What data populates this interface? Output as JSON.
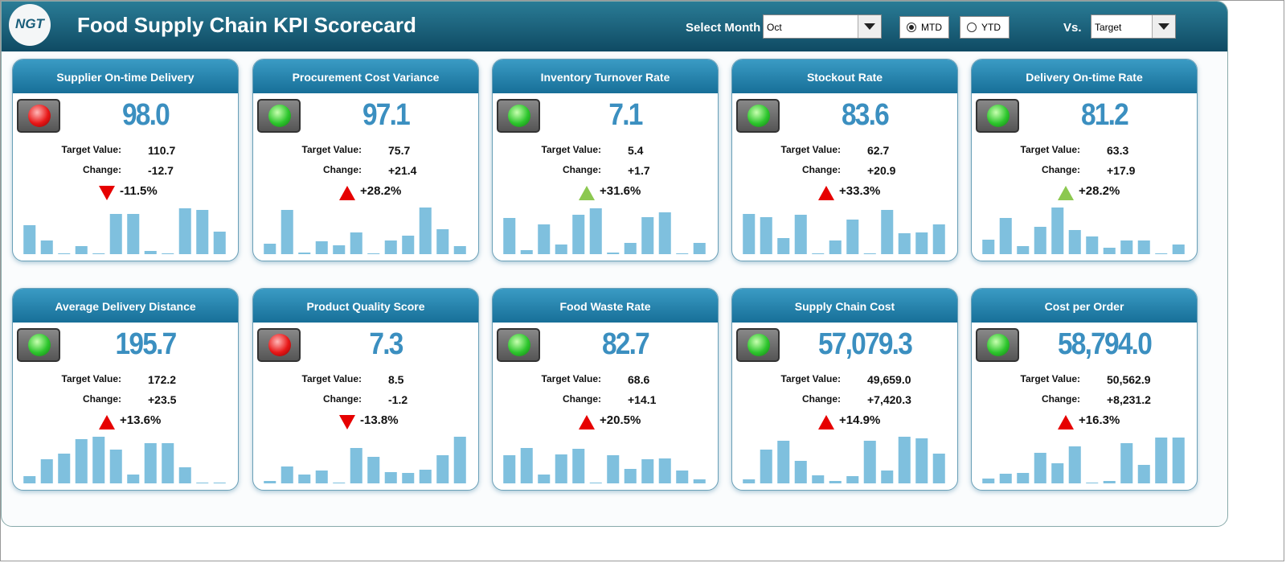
{
  "header": {
    "logo": "NGT",
    "title": "Food Supply Chain KPI Scorecard",
    "month_label": "Select Month",
    "month": "Oct",
    "modes": [
      {
        "label": "MTD",
        "selected": true
      },
      {
        "label": "YTD",
        "selected": false
      }
    ],
    "vs_label": "Vs.",
    "vs": "Target"
  },
  "cards": [
    {
      "title": "Supplier On-time Delivery",
      "value": "98.0",
      "light": "red",
      "target_label": "Target Value:",
      "target": "110.7",
      "change_label": "Change:",
      "change": "-12.7",
      "arrow": "down",
      "arrow_color": "#e60000",
      "percent": "-11.5%",
      "bars": [
        36,
        17,
        1,
        10,
        1,
        50,
        50,
        4,
        1,
        57,
        55,
        28
      ]
    },
    {
      "title": "Procurement Cost Variance",
      "value": "97.1",
      "light": "green",
      "target_label": "Target Value:",
      "target": "75.7",
      "change_label": "Change:",
      "change": "+21.4",
      "arrow": "up",
      "arrow_color": "#e60000",
      "percent": "+28.2%",
      "bars": [
        13,
        55,
        2,
        16,
        11,
        27,
        1,
        17,
        23,
        58,
        31,
        10
      ]
    },
    {
      "title": "Inventory Turnover Rate",
      "value": "7.1",
      "light": "green",
      "target_label": "Target Value:",
      "target": "5.4",
      "change_label": "Change:",
      "change": "+1.7",
      "arrow": "up",
      "arrow_color": "#8cc850",
      "percent": "+31.6%",
      "bars": [
        45,
        5,
        37,
        12,
        49,
        57,
        2,
        14,
        46,
        52,
        1,
        14
      ]
    },
    {
      "title": "Stockout Rate",
      "value": "83.6",
      "light": "green",
      "target_label": "Target Value:",
      "target": "62.7",
      "change_label": "Change:",
      "change": "+20.9",
      "arrow": "up",
      "arrow_color": "#e60000",
      "percent": "+33.3%",
      "bars": [
        50,
        46,
        20,
        49,
        1,
        17,
        43,
        1,
        55,
        26,
        27,
        37
      ]
    },
    {
      "title": "Delivery On-time Rate",
      "value": "81.2",
      "light": "green",
      "target_label": "Target Value:",
      "target": "63.3",
      "change_label": "Change:",
      "change": "+17.9",
      "arrow": "up",
      "arrow_color": "#8cc850",
      "percent": "+28.2%",
      "bars": [
        18,
        45,
        10,
        34,
        58,
        30,
        22,
        8,
        17,
        17,
        1,
        12
      ]
    },
    {
      "title": "Average Delivery Distance",
      "value": "195.7",
      "light": "green",
      "target_label": "Target Value:",
      "target": "172.2",
      "change_label": "Change:",
      "change": "+23.5",
      "arrow": "up",
      "arrow_color": "#e60000",
      "percent": "+13.6%",
      "bars": [
        9,
        30,
        37,
        55,
        58,
        42,
        11,
        50,
        50,
        20,
        1,
        1
      ]
    },
    {
      "title": "Product Quality Score",
      "value": "7.3",
      "light": "red",
      "target_label": "Target Value:",
      "target": "8.5",
      "change_label": "Change:",
      "change": "-1.2",
      "arrow": "down",
      "arrow_color": "#e60000",
      "percent": "-13.8%",
      "bars": [
        3,
        21,
        11,
        16,
        1,
        44,
        33,
        14,
        13,
        17,
        35,
        58
      ]
    },
    {
      "title": "Food Waste Rate",
      "value": "82.7",
      "light": "green",
      "target_label": "Target Value:",
      "target": "68.6",
      "change_label": "Change:",
      "change": "+14.1",
      "arrow": "up",
      "arrow_color": "#e60000",
      "percent": "+20.5%",
      "bars": [
        35,
        44,
        11,
        36,
        43,
        1,
        35,
        18,
        30,
        31,
        16,
        5
      ]
    },
    {
      "title": "Supply Chain Cost",
      "value": "57,079.3",
      "light": "green",
      "target_label": "Target Value:",
      "target": "49,659.0",
      "change_label": "Change:",
      "change": "+7,420.3",
      "arrow": "up",
      "arrow_color": "#e60000",
      "percent": "+14.9%",
      "bars": [
        5,
        42,
        53,
        28,
        10,
        3,
        9,
        53,
        16,
        58,
        56,
        37
      ]
    },
    {
      "title": "Cost per Order",
      "value": "58,794.0",
      "light": "green",
      "target_label": "Target Value:",
      "target": "50,562.9",
      "change_label": "Change:",
      "change": "+8,231.2",
      "arrow": "up",
      "arrow_color": "#e60000",
      "percent": "+16.3%",
      "bars": [
        6,
        12,
        13,
        38,
        25,
        46,
        1,
        3,
        50,
        23,
        57,
        57
      ]
    }
  ]
}
